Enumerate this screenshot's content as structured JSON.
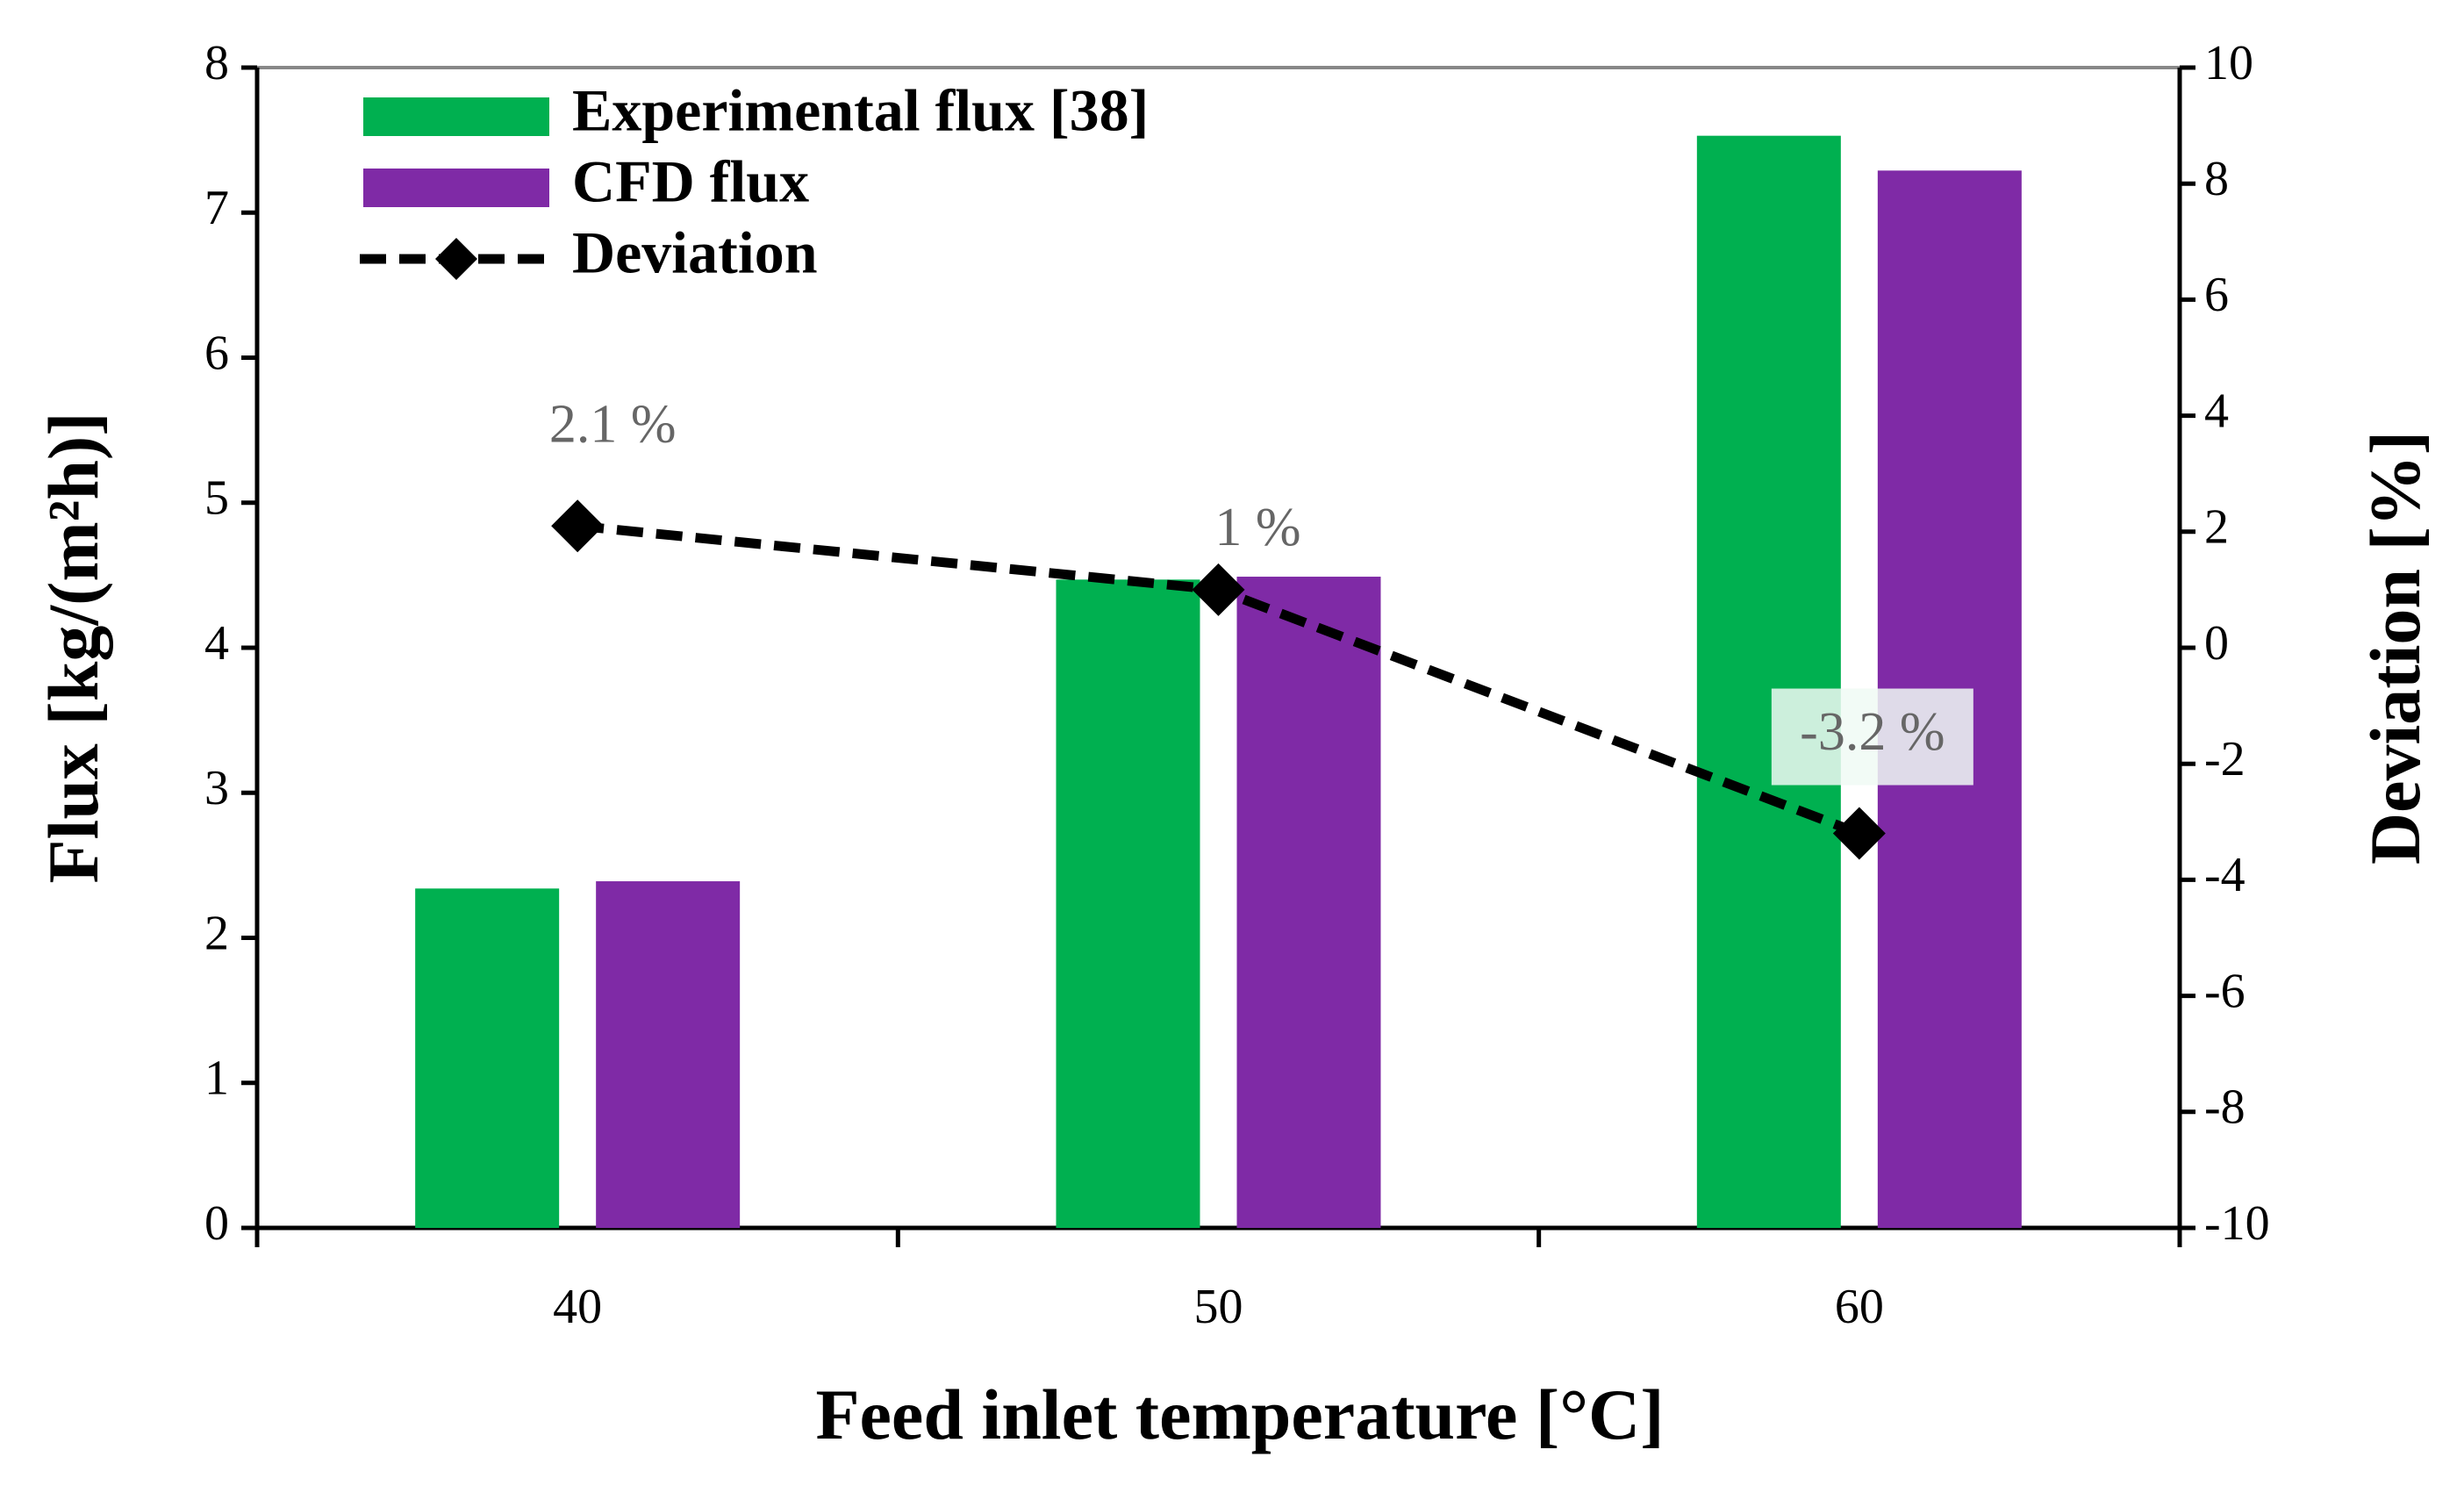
{
  "chart_data": {
    "type": "bar",
    "x_label": "Feed inlet temperature [°C]",
    "y_label": "Flux [kg/(m²h)]",
    "y2_label": "Deviation [%]",
    "categories": [
      "40",
      "50",
      "60"
    ],
    "series": [
      {
        "name": "Experimental flux [38]",
        "color": "#00b050",
        "values": [
          2.34,
          4.47,
          7.53
        ]
      },
      {
        "name": "CFD flux",
        "color": "#7f2aa6",
        "values": [
          2.39,
          4.49,
          7.29
        ]
      },
      {
        "name": "Deviation",
        "type": "line",
        "axis": "y2",
        "color": "#000000",
        "values": [
          2.1,
          1,
          -3.2
        ],
        "value_labels": [
          "2.1 %",
          "1 %",
          "-3.2 %"
        ]
      }
    ],
    "ylim": [
      0,
      8
    ],
    "yticks": [
      0,
      1,
      2,
      3,
      4,
      5,
      6,
      7,
      8
    ],
    "y2lim": [
      -10,
      10
    ],
    "y2ticks": [
      -10,
      -8,
      -6,
      -4,
      -2,
      0,
      2,
      4,
      6,
      8,
      10
    ],
    "legend": "top-left"
  }
}
